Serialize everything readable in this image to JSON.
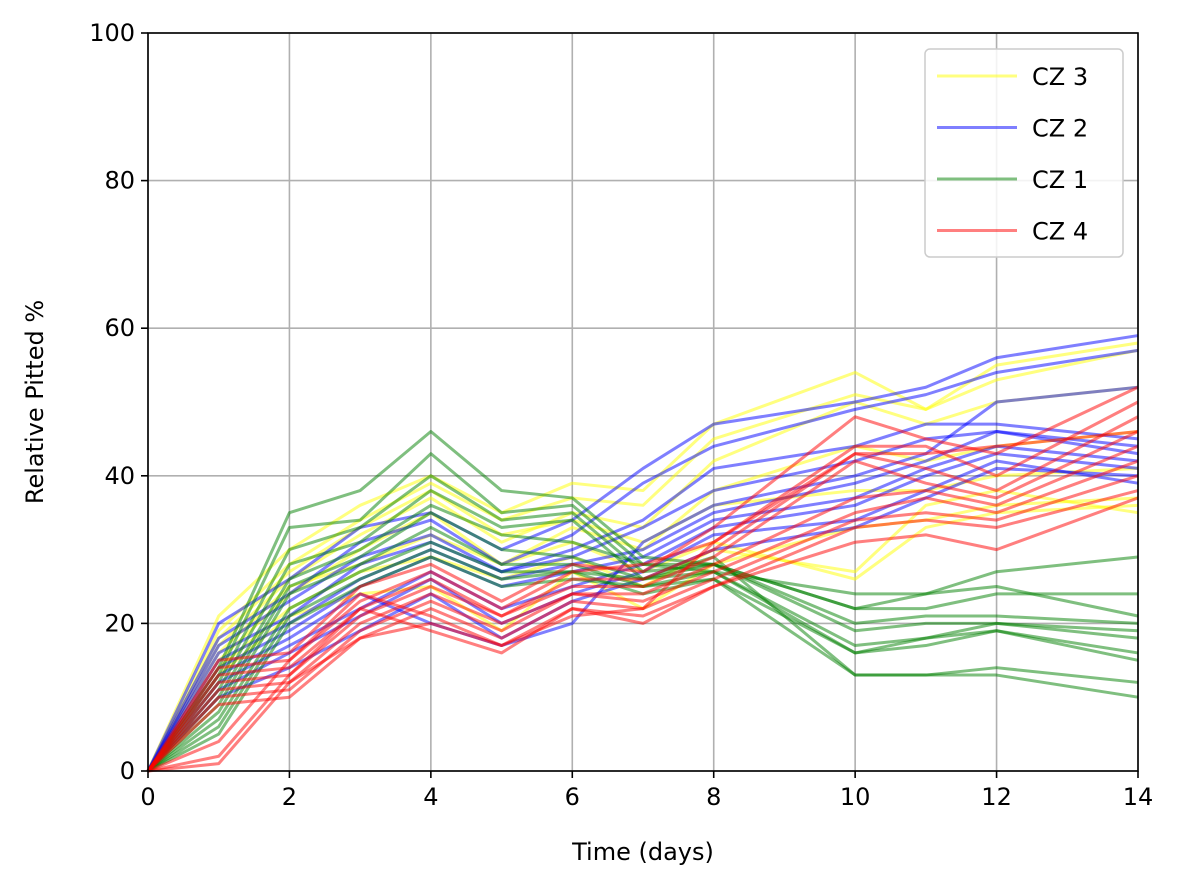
{
  "chart_data": {
    "type": "line",
    "title": "",
    "xlabel": "Time (days)",
    "ylabel": "Relative Pitted %",
    "xlim": [
      0,
      14
    ],
    "ylim": [
      0,
      100
    ],
    "xticks": [
      0,
      2,
      4,
      6,
      8,
      10,
      12,
      14
    ],
    "yticks": [
      0,
      20,
      40,
      60,
      80,
      100
    ],
    "grid": true,
    "legend_position": "top-right",
    "x": [
      0,
      1,
      2,
      3,
      4,
      5,
      6,
      7,
      8,
      10,
      11,
      12,
      14
    ],
    "groups": [
      {
        "name": "CZ 3",
        "color": "#ffff00",
        "series": [
          {
            "values": [
              0,
              21,
              30,
              36,
              40,
              35,
              39,
              38,
              47,
              54,
              49,
              55,
              58
            ]
          },
          {
            "values": [
              0,
              19,
              28,
              34,
              39,
              34,
              37,
              36,
              45,
              51,
              49,
              53,
              57
            ]
          },
          {
            "values": [
              0,
              17,
              26,
              32,
              37,
              31,
              35,
              33,
              42,
              50,
              47,
              50,
              52
            ]
          },
          {
            "values": [
              0,
              15,
              24,
              30,
              35,
              28,
              33,
              30,
              38,
              44,
              42,
              44,
              46
            ]
          },
          {
            "values": [
              0,
              16,
              25,
              28,
              32,
              28,
              31,
              27,
              31,
              26,
              33,
              35,
              36
            ]
          },
          {
            "values": [
              0,
              14,
              22,
              27,
              29,
              26,
              29,
              25,
              30,
              27,
              36,
              38,
              35
            ]
          },
          {
            "values": [
              0,
              13,
              21,
              24,
              25,
              19,
              27,
              22,
              28,
              33,
              34,
              36,
              37
            ]
          },
          {
            "values": [
              0,
              18,
              27,
              33,
              38,
              32,
              34,
              31,
              36,
              38,
              38,
              40,
              41
            ]
          }
        ]
      },
      {
        "name": "CZ 2",
        "color": "#0000ff",
        "series": [
          {
            "values": [
              0,
              20,
              26,
              33,
              35,
              30,
              34,
              41,
              47,
              50,
              52,
              56,
              59
            ]
          },
          {
            "values": [
              0,
              18,
              24,
              31,
              34,
              28,
              32,
              39,
              44,
              49,
              51,
              54,
              57
            ]
          },
          {
            "values": [
              0,
              17,
              23,
              29,
              32,
              27,
              30,
              34,
              41,
              44,
              47,
              47,
              45
            ]
          },
          {
            "values": [
              0,
              16,
              21,
              28,
              31,
              27,
              29,
              33,
              38,
              42,
              45,
              46,
              44
            ]
          },
          {
            "values": [
              0,
              15,
              20,
              26,
              30,
              26,
              28,
              30,
              35,
              39,
              42,
              46,
              43
            ]
          },
          {
            "values": [
              0,
              14,
              19,
              25,
              29,
              25,
              27,
              29,
              34,
              37,
              41,
              44,
              42
            ]
          },
          {
            "values": [
              0,
              12,
              17,
              22,
              27,
              22,
              25,
              28,
              33,
              36,
              40,
              43,
              41
            ]
          },
          {
            "values": [
              0,
              11,
              16,
              21,
              26,
              20,
              24,
              27,
              32,
              34,
              38,
              42,
              39
            ]
          },
          {
            "values": [
              0,
              10,
              14,
              19,
              24,
              18,
              23,
              26,
              30,
              33,
              37,
              41,
              40
            ]
          },
          {
            "values": [
              0,
              13,
              18,
              24,
              20,
              17,
              20,
              31,
              36,
              40,
              43,
              50,
              52
            ]
          }
        ]
      },
      {
        "name": "CZ 1",
        "color": "#008000",
        "series": [
          {
            "values": [
              0,
              14,
              35,
              38,
              46,
              38,
              37,
              29,
              28,
              22,
              22,
              24,
              24
            ]
          },
          {
            "values": [
              0,
              13,
              33,
              34,
              43,
              35,
              36,
              28,
              27,
              24,
              24,
              27,
              29
            ]
          },
          {
            "values": [
              0,
              12,
              30,
              33,
              40,
              34,
              35,
              27,
              28,
              22,
              24,
              25,
              21
            ]
          },
          {
            "values": [
              0,
              11,
              28,
              31,
              38,
              33,
              34,
              26,
              28,
              20,
              21,
              21,
              20
            ]
          },
          {
            "values": [
              0,
              10,
              26,
              30,
              36,
              32,
              31,
              28,
              28,
              19,
              20,
              20,
              19
            ]
          },
          {
            "values": [
              0,
              9,
              25,
              29,
              35,
              30,
              29,
              26,
              27,
              17,
              18,
              20,
              18
            ]
          },
          {
            "values": [
              0,
              8,
              24,
              28,
              33,
              28,
              28,
              25,
              26,
              16,
              17,
              19,
              16
            ]
          },
          {
            "values": [
              0,
              7,
              22,
              27,
              31,
              27,
              27,
              26,
              29,
              13,
              13,
              14,
              12
            ]
          },
          {
            "values": [
              0,
              6,
              21,
              26,
              30,
              26,
              27,
              24,
              26,
              13,
              13,
              13,
              10
            ]
          },
          {
            "values": [
              0,
              5,
              20,
              25,
              29,
              25,
              26,
              25,
              27,
              16,
              18,
              19,
              15
            ]
          }
        ]
      },
      {
        "name": "CZ 4",
        "color": "#ff0000",
        "series": [
          {
            "values": [
              0,
              15,
              16,
              25,
              28,
              23,
              28,
              27,
              33,
              48,
              45,
              43,
              52
            ]
          },
          {
            "values": [
              0,
              14,
              15,
              23,
              27,
              22,
              27,
              28,
              31,
              44,
              44,
              40,
              50
            ]
          },
          {
            "values": [
              0,
              13,
              14,
              22,
              26,
              21,
              26,
              26,
              30,
              43,
              41,
              38,
              48
            ]
          },
          {
            "values": [
              0,
              12,
              13,
              21,
              25,
              21,
              25,
              25,
              29,
              42,
              39,
              37,
              46
            ]
          },
          {
            "values": [
              0,
              11,
              12,
              20,
              24,
              20,
              24,
              24,
              28,
              37,
              38,
              36,
              44
            ]
          },
          {
            "values": [
              0,
              10,
              11,
              19,
              23,
              19,
              24,
              23,
              27,
              35,
              37,
              35,
              42
            ]
          },
          {
            "values": [
              0,
              9,
              10,
              18,
              22,
              18,
              23,
              22,
              26,
              34,
              35,
              34,
              40
            ]
          },
          {
            "values": [
              0,
              4,
              15,
              24,
              21,
              17,
              22,
              21,
              25,
              33,
              34,
              33,
              38
            ]
          },
          {
            "values": [
              0,
              2,
              13,
              22,
              19,
              16,
              22,
              20,
              25,
              31,
              32,
              30,
              37
            ]
          },
          {
            "values": [
              0,
              1,
              12,
              18,
              20,
              17,
              21,
              22,
              31,
              43,
              43,
              44,
              46
            ]
          }
        ]
      }
    ]
  }
}
